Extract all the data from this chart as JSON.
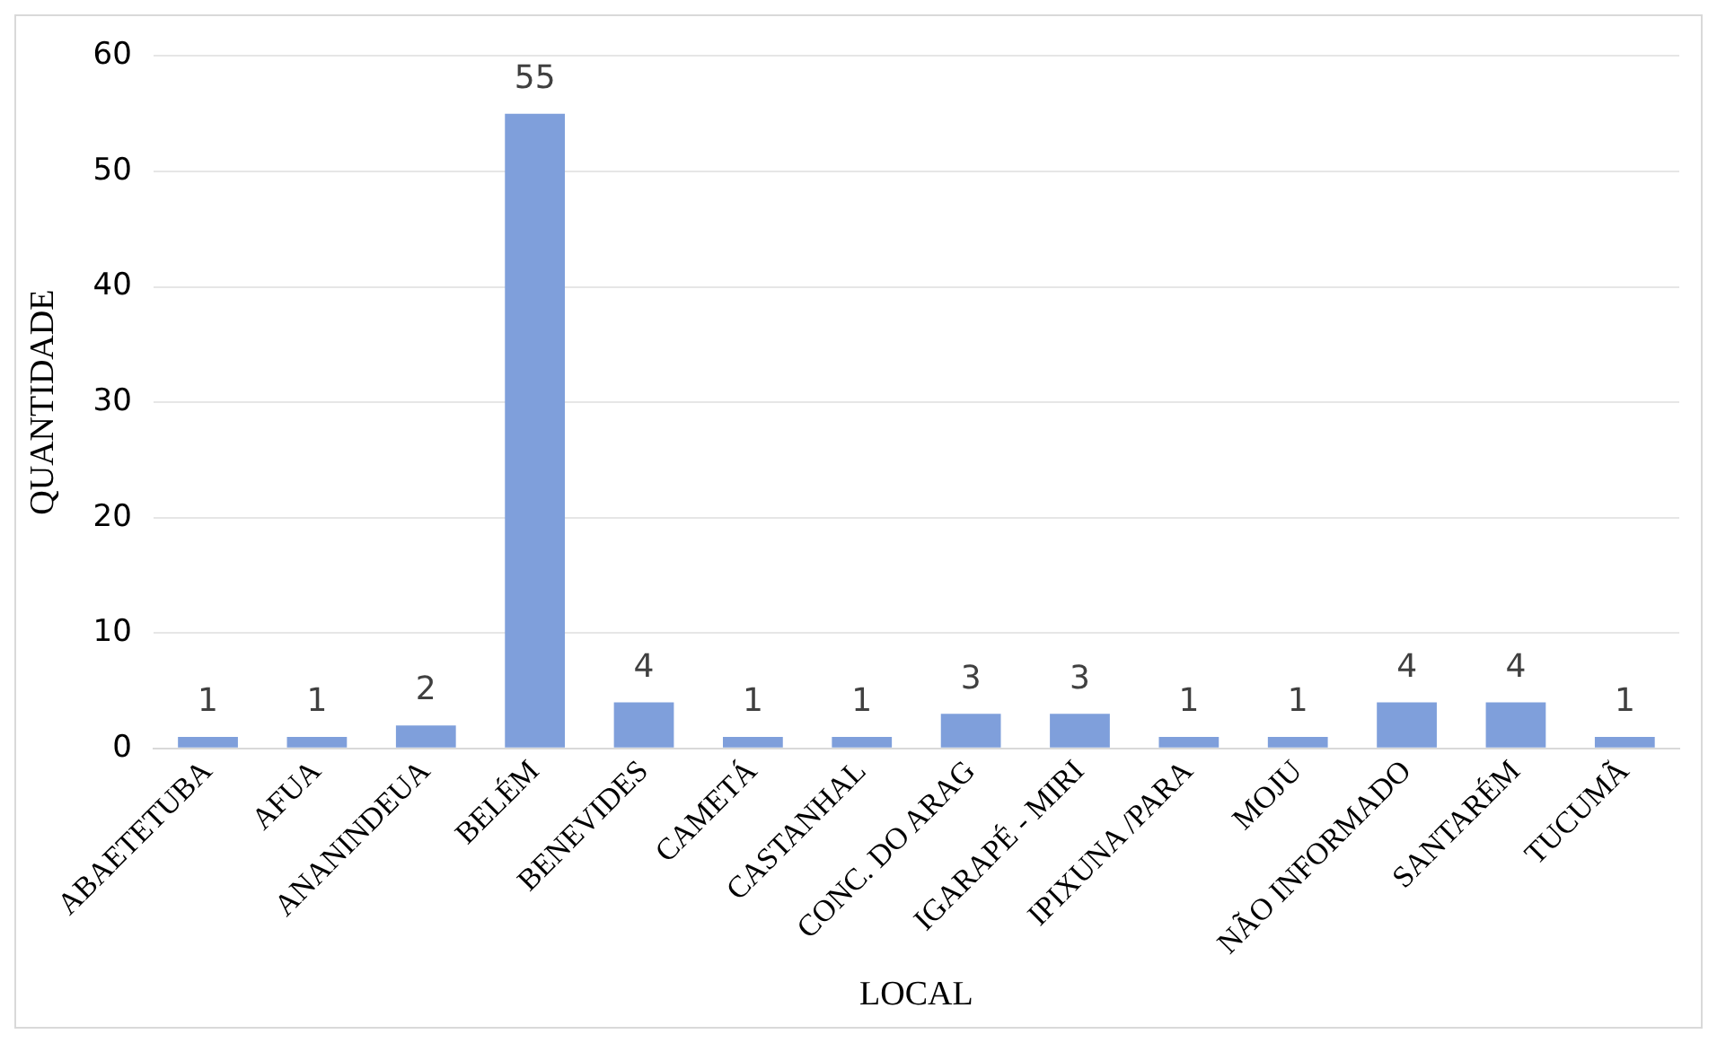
{
  "chart_data": {
    "type": "bar",
    "xlabel": "LOCAL",
    "ylabel": "QUANTIDADE",
    "categories": [
      "ABAETETUBA",
      "AFUA",
      "ANANINDEUA",
      "BELÉM",
      "BENEVIDES",
      "CAMETÁ",
      "CASTANHAL",
      "CONC. DO ARAG",
      "IGARAPÉ - MIRI",
      "IPIXUNA /PARA",
      "MOJU",
      "NÃO INFORMADO",
      "SANTARÉM",
      "TUCUMÃ"
    ],
    "values": [
      1,
      1,
      2,
      55,
      4,
      1,
      1,
      3,
      3,
      1,
      1,
      4,
      4,
      1
    ],
    "color": "#7f9fdb",
    "ylim": [
      0,
      60
    ],
    "yticks": [
      0,
      10,
      20,
      30,
      40,
      50,
      60
    ],
    "grid": "y",
    "data_labels": true
  }
}
